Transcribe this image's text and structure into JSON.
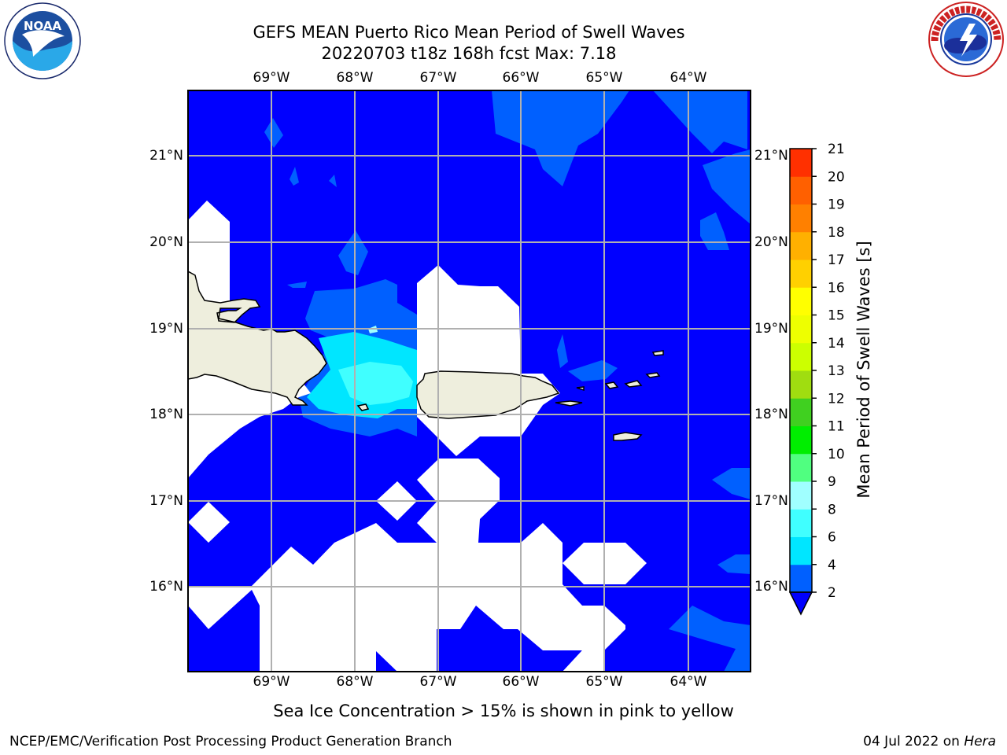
{
  "header": {
    "title_line1": "GEFS MEAN Puerto Rico Mean Period of Swell Waves",
    "title_line2": "20220703 t18z 168h fcst   Max: 7.18"
  },
  "map": {
    "lon_labels": [
      "69°W",
      "68°W",
      "67°W",
      "66°W",
      "65°W",
      "64°W"
    ],
    "lat_labels": [
      "21°N",
      "20°N",
      "19°N",
      "18°N",
      "17°N",
      "16°N"
    ],
    "ocean_color": "#0000ff",
    "land_color": "#eeeedd"
  },
  "colorbar": {
    "label": "Mean Period of Swell Waves [s]",
    "ticks": [
      "2",
      "4",
      "6",
      "8",
      "9",
      "10",
      "11",
      "12",
      "13",
      "14",
      "15",
      "16",
      "17",
      "18",
      "19",
      "20",
      "21"
    ],
    "colors": [
      "#0060ff",
      "#00e6ff",
      "#40ffff",
      "#a0ffff",
      "#50ff80",
      "#00ee00",
      "#40d020",
      "#a0dd10",
      "#ccff00",
      "#eeff00",
      "#ffff00",
      "#ffd000",
      "#ffb000",
      "#ff8000",
      "#ff6000",
      "#ff3000",
      "#ff0000"
    ],
    "under_color": "#0000ff"
  },
  "note": "Sea Ice Concentration > 15% is shown in pink to yellow",
  "footer": {
    "left": "NCEP/EMC/Verification Post Processing Product Generation Branch",
    "right_date": "04 Jul 2022 on ",
    "right_host": "Hera"
  },
  "logos": {
    "noaa_text": "NOAA",
    "nws_text": "NATIONAL WEATHER SERVICE"
  }
}
